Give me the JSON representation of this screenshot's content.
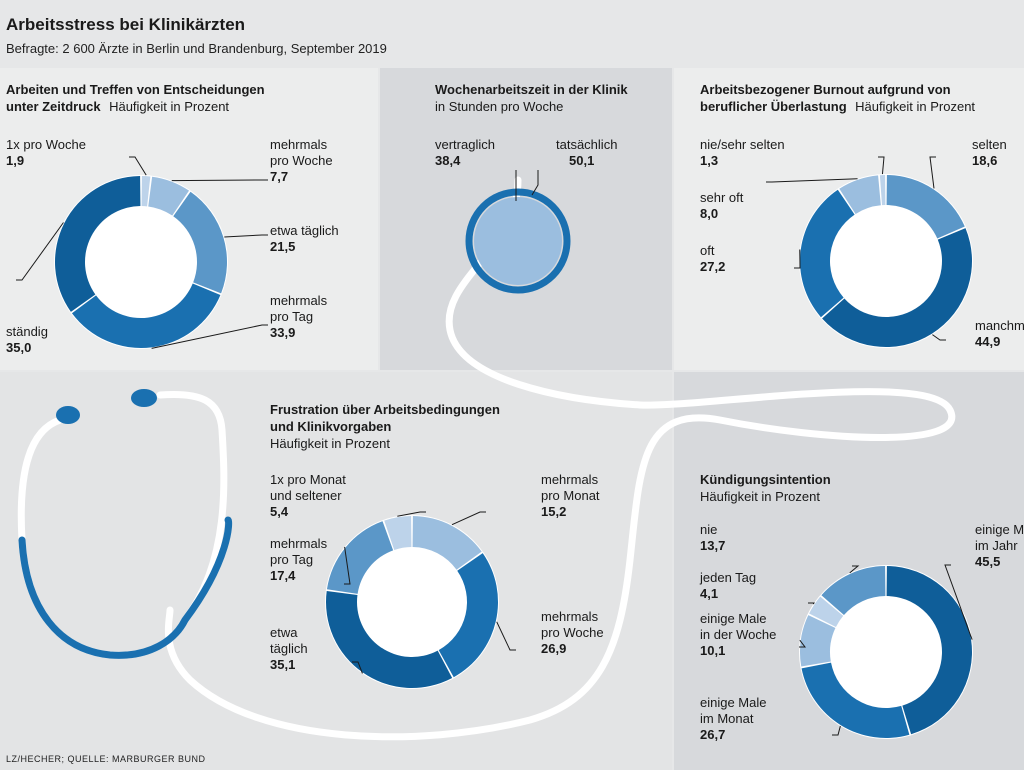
{
  "header": {
    "title": "Arbeitsstress bei Klinikärzten",
    "subtitle": "Befragte: 2 600 Ärzte in Berlin und Brandenburg, September 2019"
  },
  "source": "LZ/HECHER; QUELLE: MARBURGER BUND",
  "colors": {
    "background": "#e6e7e8",
    "panel_light": "#eceded",
    "panel_dark": "#d7d9dc",
    "blue_very_light": "#bdd3ea",
    "blue_light": "#9bbedf",
    "blue_mid": "#5b97c8",
    "blue_strong": "#1a70b0",
    "blue_dark": "#0f5e99"
  },
  "chart_data": [
    {
      "type": "pie",
      "variant": "donut",
      "title_bold": [
        "Arbeiten und Treffen von Entscheidungen",
        "unter Zeitdruck"
      ],
      "title_unit": "Häufigkeit in Prozent",
      "slices": [
        {
          "label": [
            "1x pro Woche"
          ],
          "value": 1.9,
          "value_label": "1,9",
          "color": "#bdd3ea"
        },
        {
          "label": [
            "mehrmals",
            "pro Woche"
          ],
          "value": 7.7,
          "value_label": "7,7",
          "color": "#9bbedf"
        },
        {
          "label": [
            "etwa täglich"
          ],
          "value": 21.5,
          "value_label": "21,5",
          "color": "#5b97c8"
        },
        {
          "label": [
            "mehrmals",
            "pro Tag"
          ],
          "value": 33.9,
          "value_label": "33,9",
          "color": "#1a70b0"
        },
        {
          "label": [
            "ständig"
          ],
          "value": 35.0,
          "value_label": "35,0",
          "color": "#0f5e99"
        }
      ]
    },
    {
      "type": "table",
      "title_bold": [
        "Wochenarbeitszeit in der Klinik"
      ],
      "title_unit": "in Stunden pro Woche",
      "items": [
        {
          "label": "vertraglich",
          "value": 38.4,
          "value_label": "38,4"
        },
        {
          "label": "tatsächlich",
          "value": 50.1,
          "value_label": "50,1"
        }
      ]
    },
    {
      "type": "pie",
      "variant": "donut",
      "title_bold": [
        "Arbeitsbezogener Burnout aufgrund von",
        "beruflicher Überlastung"
      ],
      "title_unit": "Häufigkeit in Prozent",
      "slices": [
        {
          "label": [
            "selten"
          ],
          "value": 18.6,
          "value_label": "18,6",
          "color": "#5b97c8"
        },
        {
          "label": [
            "manchmal"
          ],
          "value": 44.9,
          "value_label": "44,9",
          "color": "#0f5e99"
        },
        {
          "label": [
            "oft"
          ],
          "value": 27.2,
          "value_label": "27,2",
          "color": "#1a70b0"
        },
        {
          "label": [
            "sehr oft"
          ],
          "value": 8.0,
          "value_label": "8,0",
          "color": "#9bbedf"
        },
        {
          "label": [
            "nie/sehr selten"
          ],
          "value": 1.3,
          "value_label": "1,3",
          "color": "#bdd3ea"
        }
      ]
    },
    {
      "type": "pie",
      "variant": "donut",
      "title_bold": [
        "Frustration über Arbeitsbedingungen",
        "und Klinikvorgaben"
      ],
      "title_unit": "Häufigkeit in Prozent",
      "slices": [
        {
          "label": [
            "mehrmals",
            "pro Monat"
          ],
          "value": 15.2,
          "value_label": "15,2",
          "color": "#9bbedf"
        },
        {
          "label": [
            "mehrmals",
            "pro Woche"
          ],
          "value": 26.9,
          "value_label": "26,9",
          "color": "#1a70b0"
        },
        {
          "label": [
            "etwa",
            "täglich"
          ],
          "value": 35.1,
          "value_label": "35,1",
          "color": "#0f5e99"
        },
        {
          "label": [
            "mehrmals",
            "pro Tag"
          ],
          "value": 17.4,
          "value_label": "17,4",
          "color": "#5b97c8"
        },
        {
          "label": [
            "1x pro Monat",
            "und seltener"
          ],
          "value": 5.4,
          "value_label": "5,4",
          "color": "#bdd3ea"
        }
      ]
    },
    {
      "type": "pie",
      "variant": "donut",
      "title_bold": [
        "Kündigungsintention"
      ],
      "title_unit": "Häufigkeit in Prozent",
      "slices": [
        {
          "label": [
            "einige Male",
            "im Jahr"
          ],
          "value": 45.5,
          "value_label": "45,5",
          "color": "#0f5e99"
        },
        {
          "label": [
            "einige Male",
            "im Monat"
          ],
          "value": 26.7,
          "value_label": "26,7",
          "color": "#1a70b0"
        },
        {
          "label": [
            "einige Male",
            "in der Woche"
          ],
          "value": 10.1,
          "value_label": "10,1",
          "color": "#9bbedf"
        },
        {
          "label": [
            "jeden Tag"
          ],
          "value": 4.1,
          "value_label": "4,1",
          "color": "#bdd3ea"
        },
        {
          "label": [
            "nie"
          ],
          "value": 13.7,
          "value_label": "13,7",
          "color": "#5b97c8"
        }
      ]
    }
  ]
}
